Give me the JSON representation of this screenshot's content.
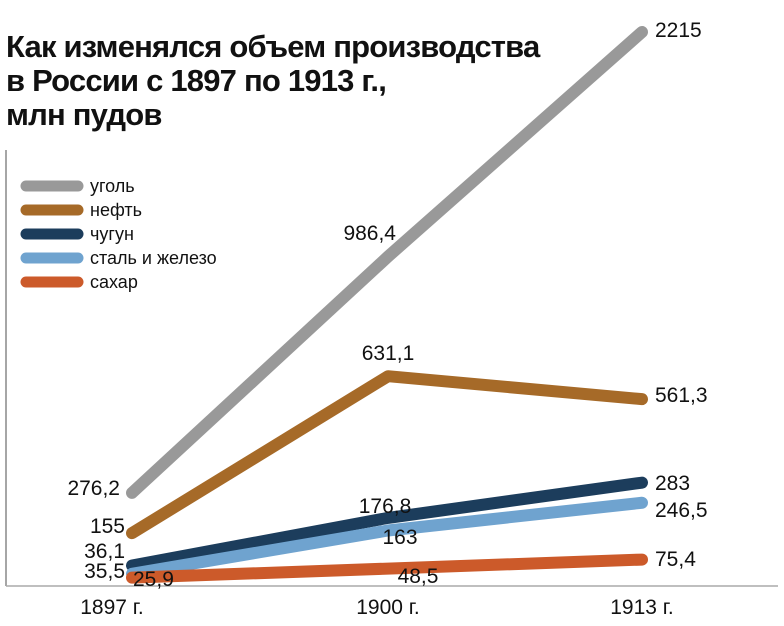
{
  "chart_data": {
    "type": "line",
    "title": "Как изменялся объем производства\nв России с 1897 по 1913 г.,\nмлн пудов",
    "categories": [
      "1897 г.",
      "1900 г.",
      "1913 г."
    ],
    "series": [
      {
        "name": "уголь",
        "color": "#999999",
        "values": [
          276.2,
          986.4,
          2215
        ],
        "labels": [
          "276,2",
          "986,4",
          "2215"
        ]
      },
      {
        "name": "нефть",
        "color": "#a66a28",
        "values": [
          155,
          631.1,
          561.3
        ],
        "labels": [
          "155",
          "631,1",
          "561,3"
        ]
      },
      {
        "name": "чугун",
        "color": "#1c3d5c",
        "values": [
          36.1,
          176.8,
          283
        ],
        "labels": [
          "36,1",
          "176,8",
          "283"
        ]
      },
      {
        "name": "сталь и железо",
        "color": "#6fa3cf",
        "values": [
          35.5,
          163,
          246.5
        ],
        "labels": [
          "35,5",
          "163",
          "246,5"
        ]
      },
      {
        "name": "сахар",
        "color": "#cc5a2a",
        "values": [
          25.9,
          48.5,
          75.4
        ],
        "labels": [
          "25,9",
          "48,5",
          "75,4"
        ]
      }
    ],
    "legend_position": "top-left",
    "grid": false
  }
}
